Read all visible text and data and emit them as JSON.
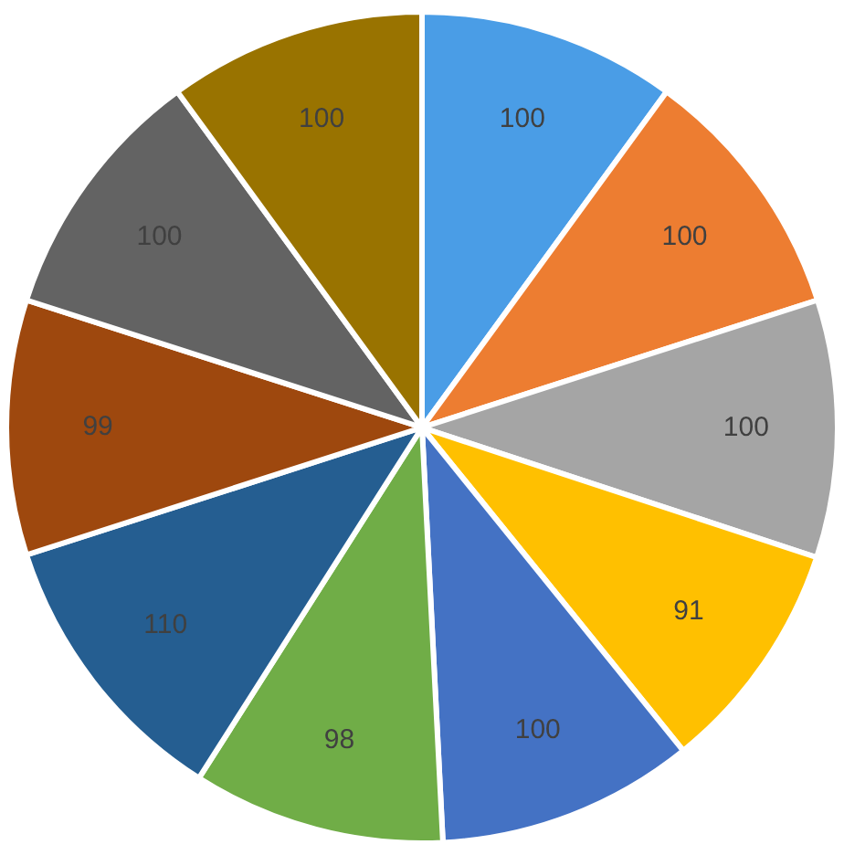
{
  "chart_data": {
    "type": "pie",
    "categories": [
      null,
      null,
      null,
      null,
      null,
      null,
      null,
      null,
      null,
      null
    ],
    "values": [
      100,
      100,
      100,
      91,
      100,
      98,
      110,
      99,
      100,
      100
    ],
    "colors": [
      "#4a9de6",
      "#ed7d31",
      "#a5a5a5",
      "#ffc000",
      "#4472c4",
      "#70ad47",
      "#255e91",
      "#9e480e",
      "#636363",
      "#997300"
    ],
    "data_labels": true,
    "legend": false
  }
}
